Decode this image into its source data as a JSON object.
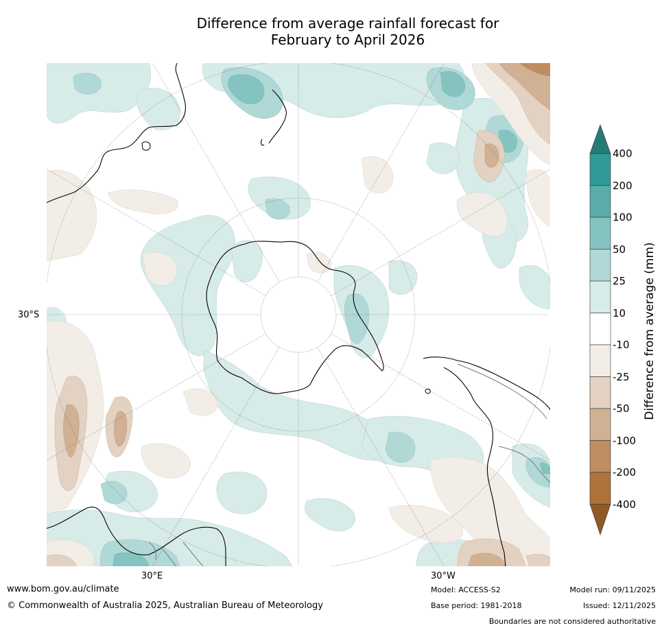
{
  "title": {
    "line1": "Difference from average rainfall forecast for",
    "line2": "February to April 2026"
  },
  "map": {
    "projection": "south-polar-stereographic",
    "lat_label": "30°S",
    "lon_labels": [
      "30°E",
      "30°W"
    ]
  },
  "legend": {
    "title": "Difference from average (mm)",
    "ticks": [
      "400",
      "200",
      "100",
      "50",
      "25",
      "10",
      "-10",
      "-25",
      "-50",
      "-100",
      "-200",
      "-400"
    ],
    "colors": {
      "above_400": "#267a78",
      "200_400": "#309a97",
      "100_200": "#5aabaa",
      "50_100": "#85c3c0",
      "25_50": "#b0d8d7",
      "10_25": "#d7ebe9",
      "neutral": "#ffffff",
      "n10_n25": "#f2ede7",
      "n25_n50": "#e3d1c1",
      "n50_n100": "#d0b194",
      "n100_n200": "#bd8e62",
      "n200_n400": "#ad733b",
      "below_n400": "#8f5a24"
    }
  },
  "footer": {
    "url": "www.bom.gov.au/climate",
    "copyright": "© Commonwealth of Australia 2025, Australian Bureau of Meteorology",
    "model": "Model: ACCESS-S2",
    "base_period": "Base period: 1981-2018",
    "model_run": "Model run: 09/11/2025",
    "issued": "Issued: 12/11/2025",
    "disclaimer": "Boundaries are not considered authoritative"
  }
}
